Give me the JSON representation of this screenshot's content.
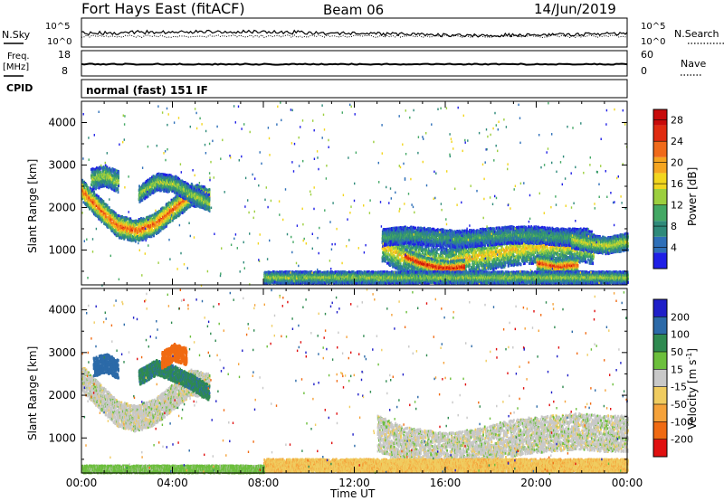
{
  "header": {
    "title": "Fort Hays East (fitACF)",
    "beam": "Beam 06",
    "date": "14/Jun/2019"
  },
  "strips": {
    "nsky_label": "N.Sky",
    "nsky_ticks": [
      "10^5",
      "10^0"
    ],
    "nsearch_label": "N.Search",
    "nsearch_ticks": [
      "10^5",
      "10^0"
    ],
    "freq_label": "Freq.",
    "freq_unit": "[MHz]",
    "freq_ticks": [
      "18",
      "8"
    ],
    "nave_label": "Nave",
    "nave_ticks": [
      "60",
      "0"
    ],
    "cpid_label": "CPID",
    "cpid_value": "normal (fast) 151 IF"
  },
  "x_axis": {
    "label": "Time UT",
    "ticks": [
      "00:00",
      "04:00",
      "08:00",
      "12:00",
      "16:00",
      "20:00",
      "00:00"
    ],
    "range_hours": [
      0,
      24
    ]
  },
  "colors": {
    "power": [
      "#1f1fe6",
      "#2e6fb8",
      "#2f8a7a",
      "#43a864",
      "#9ccf3f",
      "#f2d61e",
      "#f5a520",
      "#f06a1a",
      "#e02b10",
      "#c80a0a"
    ],
    "velocity": [
      "#e01010",
      "#f06a12",
      "#f5a23a",
      "#f0cc60",
      "#c8c8c8",
      "#6cbf3c",
      "#2f8a50",
      "#2c6aa8",
      "#1f1fc8"
    ]
  },
  "chart_data": [
    {
      "type": "heatmap",
      "title": "Power",
      "ylabel": "Slant Range [km]",
      "xlabel": "",
      "colorbar_label": "Power [dB]",
      "colorbar_ticks": [
        "28",
        "24",
        "20",
        "16",
        "12",
        "8",
        "4"
      ],
      "ylim": [
        180,
        4500
      ],
      "y_ticks": [
        "4000",
        "3000",
        "2000",
        "1000"
      ],
      "zlim": [
        0,
        30
      ],
      "regions": [
        {
          "t0": 0.0,
          "t1": 5.6,
          "r_center": [
            2400,
            1950,
            1550,
            1450,
            1600,
            1950,
            2300,
            2200
          ],
          "width": 260,
          "peak": 24
        },
        {
          "t0": 0.4,
          "t1": 1.6,
          "r_center": [
            2650,
            2750,
            2600
          ],
          "width": 250,
          "peak": 14
        },
        {
          "t0": 2.5,
          "t1": 5.6,
          "r_center": [
            2300,
            2600,
            2550,
            2300,
            2100
          ],
          "width": 200,
          "peak": 14
        },
        {
          "t0": 13.2,
          "t1": 22.5,
          "r_center": [
            1100,
            850,
            750,
            650,
            800,
            900,
            1000,
            1050,
            1100,
            1100,
            1050
          ],
          "width": 380,
          "peak": 18
        },
        {
          "t0": 14.2,
          "t1": 16.8,
          "r_center": [
            850,
            700,
            600,
            560,
            600
          ],
          "width": 170,
          "peak": 28
        },
        {
          "t0": 20.0,
          "t1": 21.8,
          "r_center": [
            700,
            600,
            650
          ],
          "width": 160,
          "peak": 26
        },
        {
          "t0": 13.2,
          "t1": 22.2,
          "r_center": [
            1300,
            1350,
            1300,
            1250,
            1300,
            1350,
            1350,
            1300,
            1300
          ],
          "width": 200,
          "peak": 10
        },
        {
          "t0": 21.5,
          "t1": 24.0,
          "r_center": [
            1250,
            1150,
            1100,
            1200
          ],
          "width": 200,
          "peak": 16
        },
        {
          "t0": 8.0,
          "t1": 24.0,
          "r_center": [
            350
          ],
          "width": 140,
          "peak": 14
        }
      ]
    },
    {
      "type": "heatmap",
      "title": "Velocity",
      "ylabel": "Slant Range [km]",
      "xlabel": "Time UT",
      "colorbar_label": "Velocity [m s^-1]",
      "colorbar_ticks": [
        "200",
        "100",
        "50",
        "15",
        "-15",
        "-50",
        "-100",
        "-200"
      ],
      "ylim": [
        180,
        4500
      ],
      "y_ticks": [
        "4000",
        "3000",
        "2000",
        "1000"
      ],
      "zlim": [
        -250,
        250
      ],
      "regions": [
        {
          "t0": 0.0,
          "t1": 5.6,
          "r_center": [
            2400,
            1950,
            1550,
            1450,
            1600,
            1950,
            2300,
            2200
          ],
          "width": 300,
          "v": 0
        },
        {
          "t0": 0.5,
          "t1": 1.6,
          "r_center": [
            2650,
            2750,
            2600
          ],
          "width": 220,
          "v": 180
        },
        {
          "t0": 2.5,
          "t1": 5.6,
          "r_center": [
            2400,
            2650,
            2500,
            2300,
            2050
          ],
          "width": 180,
          "v": 90
        },
        {
          "t0": 3.5,
          "t1": 4.6,
          "r_center": [
            2800,
            3000,
            2900
          ],
          "width": 200,
          "v": -150
        },
        {
          "t0": 13.0,
          "t1": 24.0,
          "r_center": [
            1100,
            850,
            750,
            700,
            800,
            950,
            1050,
            1100,
            1150,
            1100,
            1100
          ],
          "width": 420,
          "v": 0
        },
        {
          "t0": 8.0,
          "t1": 24.0,
          "r_center": [
            350
          ],
          "width": 150,
          "v": -40
        },
        {
          "t0": 0.0,
          "t1": 8.0,
          "r_center": [
            250
          ],
          "width": 100,
          "v": 30
        }
      ]
    }
  ]
}
